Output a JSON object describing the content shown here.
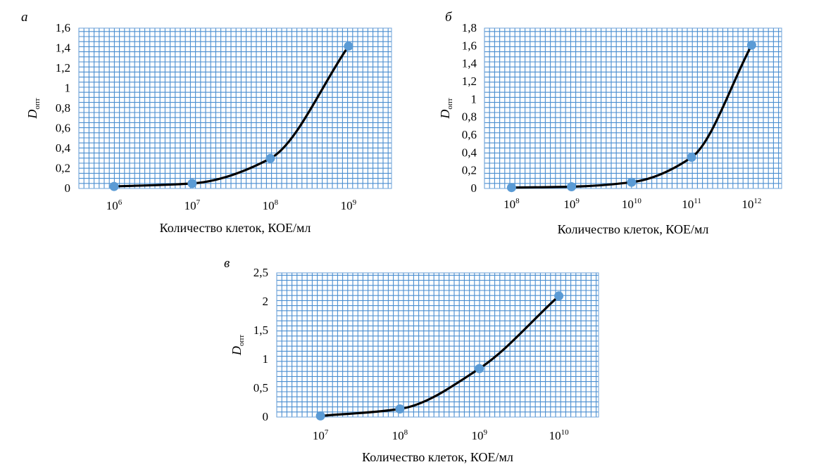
{
  "chart_data": [
    {
      "type": "line",
      "panel_label": "а",
      "title": "",
      "xlabel": "Количество клеток, КОЕ/мл",
      "ylabel_main": "D",
      "ylabel_sub": "опт",
      "x_ticks": [
        {
          "base": "10",
          "exp": "6"
        },
        {
          "base": "10",
          "exp": "7"
        },
        {
          "base": "10",
          "exp": "8"
        },
        {
          "base": "10",
          "exp": "9"
        }
      ],
      "y_tick_labels": [
        "0",
        "0,2",
        "0,4",
        "0,6",
        "0,8",
        "1",
        "1,2",
        "1,4",
        "1,6"
      ],
      "ylim": [
        0,
        1.6
      ],
      "xlim_log10": [
        5.55,
        9.55
      ],
      "x_log10": [
        6,
        7,
        8,
        9
      ],
      "y": [
        0.02,
        0.05,
        0.3,
        1.42
      ],
      "grid": true,
      "marker_color": "#5b9bd5",
      "line_color": "#000000",
      "grid_color": "#4a8ed0"
    },
    {
      "type": "line",
      "panel_label": "б",
      "title": "",
      "xlabel": "Количество клеток, КОЕ/мл",
      "ylabel_main": "D",
      "ylabel_sub": "опт",
      "x_ticks": [
        {
          "base": "10",
          "exp": "8"
        },
        {
          "base": "10",
          "exp": "9"
        },
        {
          "base": "10",
          "exp": "10"
        },
        {
          "base": "10",
          "exp": "11"
        },
        {
          "base": "10",
          "exp": "12"
        }
      ],
      "y_tick_labels": [
        "0",
        "0,2",
        "0,4",
        "0,6",
        "0,8",
        "1",
        "1,2",
        "1,4",
        "1,6",
        "1,8"
      ],
      "ylim": [
        0,
        1.8
      ],
      "xlim_log10": [
        7.55,
        12.5
      ],
      "x_log10": [
        8,
        9,
        10,
        11,
        12
      ],
      "y": [
        0.01,
        0.02,
        0.07,
        0.35,
        1.61
      ],
      "grid": true,
      "marker_color": "#5b9bd5",
      "line_color": "#000000",
      "grid_color": "#4a8ed0"
    },
    {
      "type": "line",
      "panel_label": "в",
      "title": "",
      "xlabel": "Количество клеток, КОЕ/мл",
      "ylabel_main": "D",
      "ylabel_sub": "опт",
      "x_ticks": [
        {
          "base": "10",
          "exp": "7"
        },
        {
          "base": "10",
          "exp": "8"
        },
        {
          "base": "10",
          "exp": "9"
        },
        {
          "base": "10",
          "exp": "10"
        }
      ],
      "y_tick_labels": [
        "0",
        "0,5",
        "1",
        "1,5",
        "2",
        "2,5"
      ],
      "ylim": [
        0,
        2.5
      ],
      "xlim_log10": [
        6.45,
        10.5
      ],
      "x_log10": [
        7,
        8,
        9,
        10
      ],
      "y": [
        0.02,
        0.14,
        0.84,
        2.1
      ],
      "grid": true,
      "marker_color": "#5b9bd5",
      "line_color": "#000000",
      "grid_color": "#4a8ed0"
    }
  ]
}
